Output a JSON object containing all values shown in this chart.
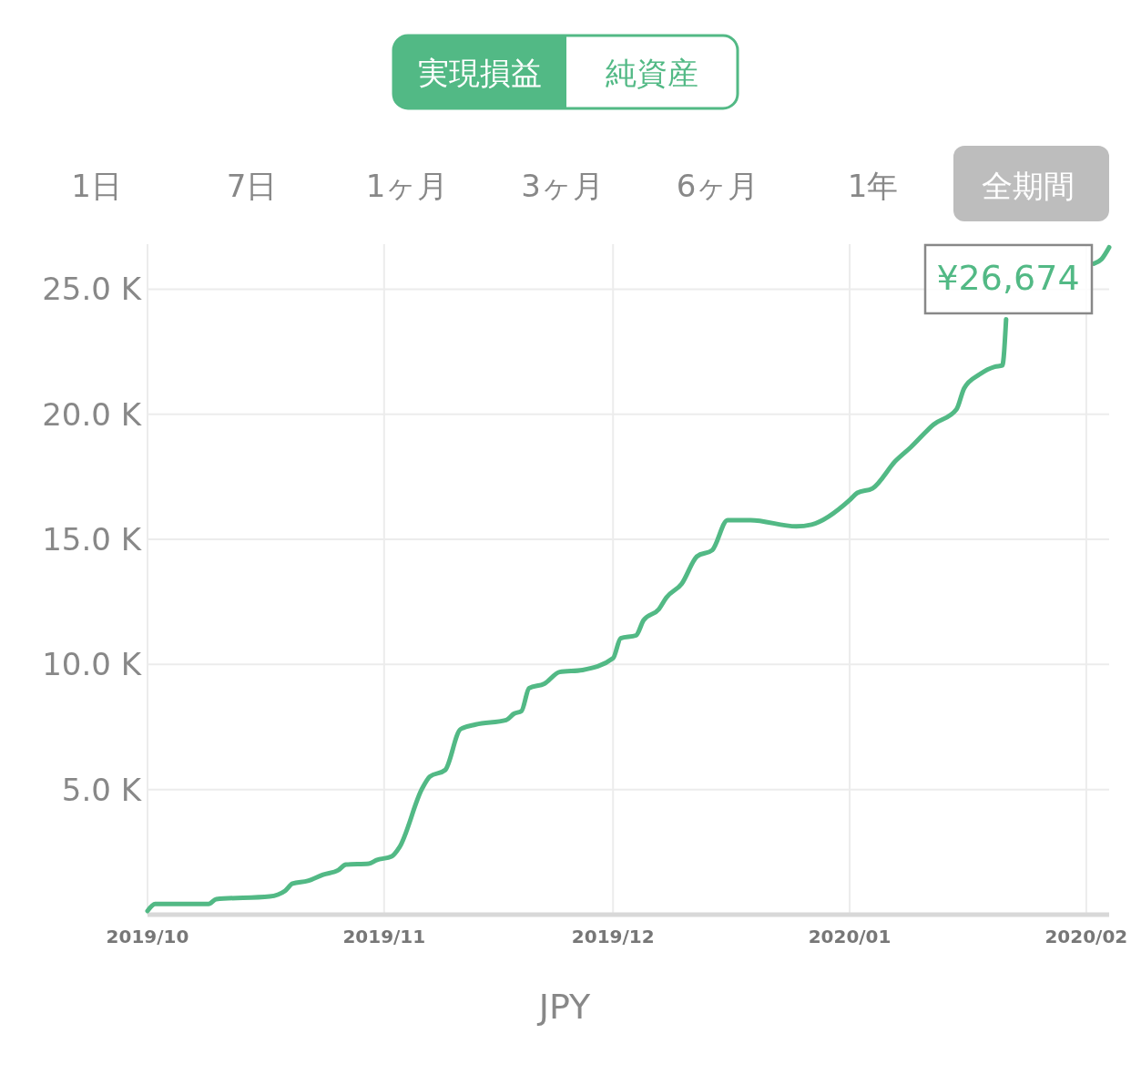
{
  "chart_data": {
    "type": "line",
    "xlabel": "JPY",
    "x": [
      "2019-10-01",
      "2019-10-02",
      "2019-10-09",
      "2019-10-10",
      "2019-10-17",
      "2019-10-19",
      "2019-10-20",
      "2019-10-22",
      "2019-10-24",
      "2019-10-26",
      "2019-10-27",
      "2019-10-30",
      "2019-10-31",
      "2019-11-02",
      "2019-11-03",
      "2019-11-06",
      "2019-11-07",
      "2019-11-09",
      "2019-11-11",
      "2019-11-13",
      "2019-11-17",
      "2019-11-18",
      "2019-11-19",
      "2019-11-20",
      "2019-11-22",
      "2019-11-24",
      "2019-11-27",
      "2019-12-01",
      "2019-12-02",
      "2019-12-04",
      "2019-12-05",
      "2019-12-07",
      "2019-12-08",
      "2019-12-10",
      "2019-12-12",
      "2019-12-14",
      "2019-12-16",
      "2019-12-19",
      "2019-12-25",
      "2019-12-27",
      "2020-01-01",
      "2020-01-02",
      "2020-01-04",
      "2020-01-07",
      "2020-01-09",
      "2020-01-12",
      "2020-01-15",
      "2020-01-16",
      "2020-01-18",
      "2020-01-20",
      "2020-01-21",
      "2020-01-21T12:00",
      "2020-01-22",
      "2020-01-23",
      "2020-01-27",
      "2020-01-30",
      "2020-02-02",
      "2020-02-03",
      "2020-02-04"
    ],
    "series": [
      {
        "color": "#52b985",
        "values": [
          150,
          430,
          430,
          620,
          730,
          950,
          1240,
          1350,
          1600,
          1780,
          2000,
          2040,
          2180,
          2330,
          2690,
          5050,
          5520,
          5780,
          7410,
          7600,
          7780,
          8030,
          8140,
          9050,
          9230,
          9700,
          9780,
          10250,
          11050,
          11160,
          11770,
          12210,
          12680,
          13230,
          14320,
          14570,
          15770,
          15770,
          15520,
          15590,
          16570,
          16860,
          17040,
          18130,
          18680,
          19590,
          20200,
          21040,
          21590,
          21900,
          21950,
          23800,
          null,
          null,
          null,
          null,
          26020,
          26200,
          26674
        ]
      }
    ],
    "xlim": [
      "2019-10-01",
      "2020-02-04"
    ],
    "xticks": [
      {
        "value": "2019-10-01",
        "label": "2019/10"
      },
      {
        "value": "2019-11-01",
        "label": "2019/11"
      },
      {
        "value": "2019-12-01",
        "label": "2019/12"
      },
      {
        "value": "2020-01-01",
        "label": "2020/01"
      },
      {
        "value": "2020-02-01",
        "label": "2020/02"
      }
    ],
    "ylim": [
      0,
      26800
    ],
    "yticks": [
      {
        "value": 5000,
        "label": "5.0 K"
      },
      {
        "value": 10000,
        "label": "10.0 K"
      },
      {
        "value": 15000,
        "label": "15.0 K"
      },
      {
        "value": 20000,
        "label": "20.0 K"
      },
      {
        "value": 25000,
        "label": "25.0 K"
      }
    ],
    "grid": true,
    "marker": "none",
    "line_style": "solid",
    "annotations": [
      "実現損益",
      "純資産",
      "1日",
      "7日",
      "1ヶ月",
      "3ヶ月",
      "6ヶ月",
      "1年",
      "全期間",
      {
        "text": "¥26,674",
        "x": "2020-02-04",
        "y": 26674
      }
    ]
  }
}
